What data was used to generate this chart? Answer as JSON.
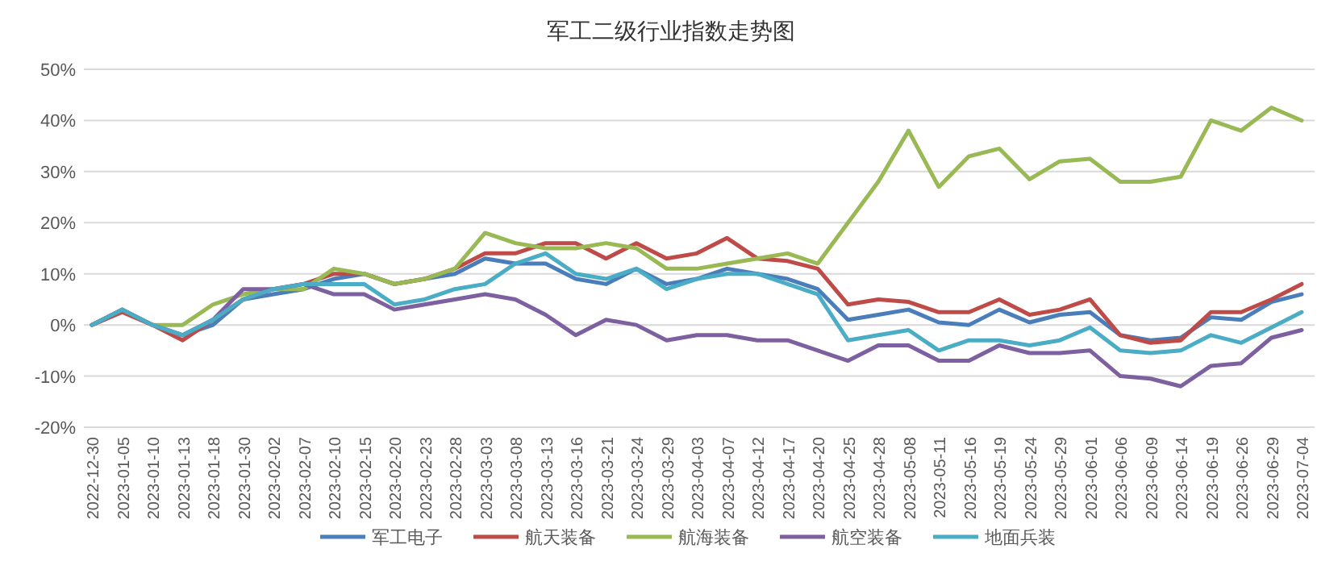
{
  "chart_data": {
    "type": "line",
    "title": "军工二级行业指数走势图",
    "categories": [
      "2022-12-30",
      "2023-01-05",
      "2023-01-10",
      "2023-01-13",
      "2023-01-18",
      "2023-01-30",
      "2023-02-02",
      "2023-02-07",
      "2023-02-10",
      "2023-02-15",
      "2023-02-20",
      "2023-02-23",
      "2023-02-28",
      "2023-03-03",
      "2023-03-08",
      "2023-03-13",
      "2023-03-16",
      "2023-03-21",
      "2023-03-24",
      "2023-03-29",
      "2023-04-03",
      "2023-04-07",
      "2023-04-12",
      "2023-04-17",
      "2023-04-20",
      "2023-04-25",
      "2023-04-28",
      "2023-05-08",
      "2023-05-11",
      "2023-05-16",
      "2023-05-19",
      "2023-05-24",
      "2023-05-29",
      "2023-06-01",
      "2023-06-06",
      "2023-06-09",
      "2023-06-14",
      "2023-06-19",
      "2023-06-26",
      "2023-06-29",
      "2023-07-04"
    ],
    "series": [
      {
        "name": "军工电子",
        "color": "#4a7ebb",
        "values": [
          0,
          3,
          0,
          -2,
          0,
          5,
          6,
          7,
          9,
          10,
          8,
          9,
          10,
          13,
          12,
          12,
          9,
          8,
          11,
          8,
          9,
          11,
          10,
          9,
          7,
          1,
          2,
          3,
          0.5,
          0,
          3,
          0.5,
          2,
          2.5,
          -2,
          -3,
          -2.5,
          1.5,
          1,
          4.5,
          6
        ]
      },
      {
        "name": "航天装备",
        "color": "#be4b48",
        "values": [
          0,
          2.5,
          0,
          -3,
          1,
          5,
          7,
          8,
          10,
          10,
          8,
          9,
          11,
          14,
          14,
          16,
          16,
          13,
          16,
          13,
          14,
          17,
          13,
          12.5,
          11,
          4,
          5,
          4.5,
          2.5,
          2.5,
          5,
          2,
          3,
          5,
          -2,
          -3.5,
          -3,
          2.5,
          2.5,
          5,
          8
        ]
      },
      {
        "name": "航海装备",
        "color": "#98b954",
        "values": [
          0,
          3,
          0,
          0,
          4,
          6,
          7,
          7,
          11,
          10,
          8,
          9,
          11,
          18,
          16,
          15,
          15,
          16,
          15,
          11,
          11,
          12,
          13,
          14,
          12,
          20,
          28,
          38,
          27,
          33,
          34.5,
          28.5,
          32,
          32.5,
          28,
          28,
          29,
          40,
          38,
          42.5,
          40
        ]
      },
      {
        "name": "航空装备",
        "color": "#7d60a0",
        "values": [
          0,
          3,
          0,
          -2,
          1,
          7,
          7,
          8,
          6,
          6,
          3,
          4,
          5,
          6,
          5,
          2,
          -2,
          1,
          0,
          -3,
          -2,
          -2,
          -3,
          -3,
          -5,
          -7,
          -4,
          -4,
          -7,
          -7,
          -4,
          -5.5,
          -5.5,
          -5,
          -10,
          -10.5,
          -12,
          -8,
          -7.5,
          -2.5,
          -1
        ]
      },
      {
        "name": "地面兵装",
        "color": "#4bacc6",
        "values": [
          0,
          3,
          0,
          -2,
          1,
          5,
          7,
          8,
          8,
          8,
          4,
          5,
          7,
          8,
          12,
          14,
          10,
          9,
          11,
          7,
          9,
          10,
          10,
          8,
          6,
          -3,
          -2,
          -1,
          -5,
          -3,
          -3,
          -4,
          -3,
          -0.5,
          -5,
          -5.5,
          -5,
          -2,
          -3.5,
          -0.5,
          2.5
        ]
      }
    ],
    "ylim": [
      -20,
      50
    ],
    "yticks": [
      {
        "value": -20,
        "label": "-20%"
      },
      {
        "value": -10,
        "label": "-10%"
      },
      {
        "value": 0,
        "label": "0%"
      },
      {
        "value": 10,
        "label": "10%"
      },
      {
        "value": 20,
        "label": "20%"
      },
      {
        "value": 30,
        "label": "30%"
      },
      {
        "value": 40,
        "label": "40%"
      },
      {
        "value": 50,
        "label": "50%"
      }
    ],
    "grid": "y",
    "legend": "bottom",
    "marker": "none",
    "line_style": "solid"
  }
}
